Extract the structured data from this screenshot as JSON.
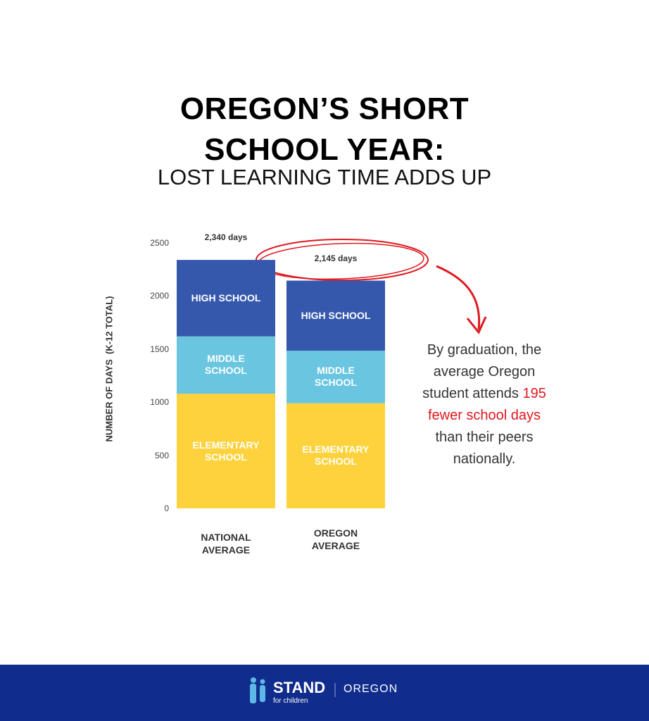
{
  "chart_data": {
    "type": "stacked_bar",
    "title": "OREGON’S SHORT SCHOOL YEAR:",
    "subtitle": "LOST LEARNING TIME ADDS UP",
    "y_label": "NUMBER OF DAYS  (K-12 TOTAL)",
    "categories": [
      "NATIONAL AVERAGE",
      "OREGON AVERAGE"
    ],
    "series": [
      {
        "name": "ELEMENTARY SCHOOL",
        "color": "#fdd23d",
        "values": [
          1080,
          990
        ]
      },
      {
        "name": "MIDDLE SCHOOL",
        "color": "#69c5e0",
        "values": [
          540,
          495
        ]
      },
      {
        "name": "HIGH SCHOOL",
        "color": "#3558ad",
        "values": [
          720,
          660
        ]
      }
    ],
    "totals": [
      2340,
      2145
    ],
    "total_labels": [
      "2,340 days",
      "2,145 days"
    ],
    "ylim": [
      0,
      2500
    ],
    "yticks": [
      0,
      500,
      1000,
      1500,
      2000,
      2500
    ],
    "grid": false,
    "annotation": {
      "before": "By graduation, the average Oregon student attends",
      "highlight": "195 fewer school days",
      "after": "than their peers nationally."
    }
  },
  "footer": {
    "brand": "STAND",
    "tagline": "for children",
    "region": "OREGON"
  }
}
